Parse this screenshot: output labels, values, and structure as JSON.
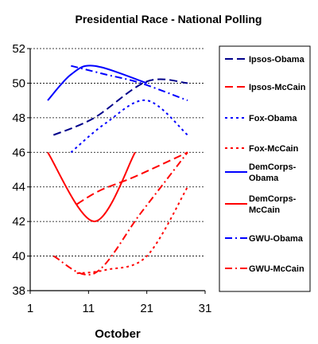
{
  "chart_data": {
    "type": "line",
    "title": "Presidential Race - National Polling",
    "xlabel": "October",
    "ylabel": "",
    "xlim": [
      1,
      31
    ],
    "ylim": [
      38,
      52
    ],
    "x_ticks": [
      "1",
      "11",
      "21",
      "31"
    ],
    "y_ticks": [
      "38",
      "40",
      "42",
      "44",
      "46",
      "48",
      "50",
      "52"
    ],
    "grid": "horizontal-dashed",
    "legend_position": "right",
    "series": [
      {
        "name": "Ipsos-Obama",
        "color": "#00008b",
        "dash": "longdash",
        "points": [
          [
            5,
            47
          ],
          [
            12,
            48
          ],
          [
            21,
            50.1
          ],
          [
            28,
            50
          ]
        ]
      },
      {
        "name": "Ipsos-McCain",
        "color": "#ff0000",
        "dash": "longdash",
        "points": [
          [
            9,
            43
          ],
          [
            13,
            43.8
          ],
          [
            19,
            44.6
          ],
          [
            28,
            46
          ]
        ]
      },
      {
        "name": "Fox-Obama",
        "color": "#0000ff",
        "dash": "dot",
        "points": [
          [
            8,
            46
          ],
          [
            14,
            47.7
          ],
          [
            21,
            49
          ],
          [
            28,
            47
          ]
        ]
      },
      {
        "name": "Fox-McCain",
        "color": "#ff0000",
        "dash": "dot",
        "points": [
          [
            9,
            39
          ],
          [
            14,
            39.2
          ],
          [
            21,
            40
          ],
          [
            28,
            44
          ]
        ]
      },
      {
        "name": "DemCorps-Obama",
        "color": "#0000ff",
        "dash": "solid",
        "points": [
          [
            4,
            49
          ],
          [
            8,
            50.5
          ],
          [
            12,
            51
          ],
          [
            21,
            50
          ]
        ]
      },
      {
        "name": "DemCorps-McCain",
        "color": "#ff0000",
        "dash": "solid",
        "points": [
          [
            4,
            46
          ],
          [
            12,
            42
          ],
          [
            19,
            46
          ]
        ]
      },
      {
        "name": "GWU-Obama",
        "color": "#0000ff",
        "dash": "dashdot",
        "points": [
          [
            8,
            51
          ],
          [
            14,
            50.5
          ],
          [
            20,
            50
          ],
          [
            28,
            49
          ]
        ]
      },
      {
        "name": "GWU-McCain",
        "color": "#ff0000",
        "dash": "dashdot",
        "points": [
          [
            5,
            40
          ],
          [
            12,
            39
          ],
          [
            20,
            42.5
          ],
          [
            28,
            46
          ]
        ]
      }
    ]
  },
  "legend": [
    {
      "label": "Ipsos-Obama"
    },
    {
      "label": "Ipsos-McCain"
    },
    {
      "label": "Fox-Obama"
    },
    {
      "label": "Fox-McCain"
    },
    {
      "label": "DemCorps-Obama"
    },
    {
      "label": "DemCorps-McCain"
    },
    {
      "label": "GWU-Obama"
    },
    {
      "label": "GWU-McCain"
    }
  ]
}
